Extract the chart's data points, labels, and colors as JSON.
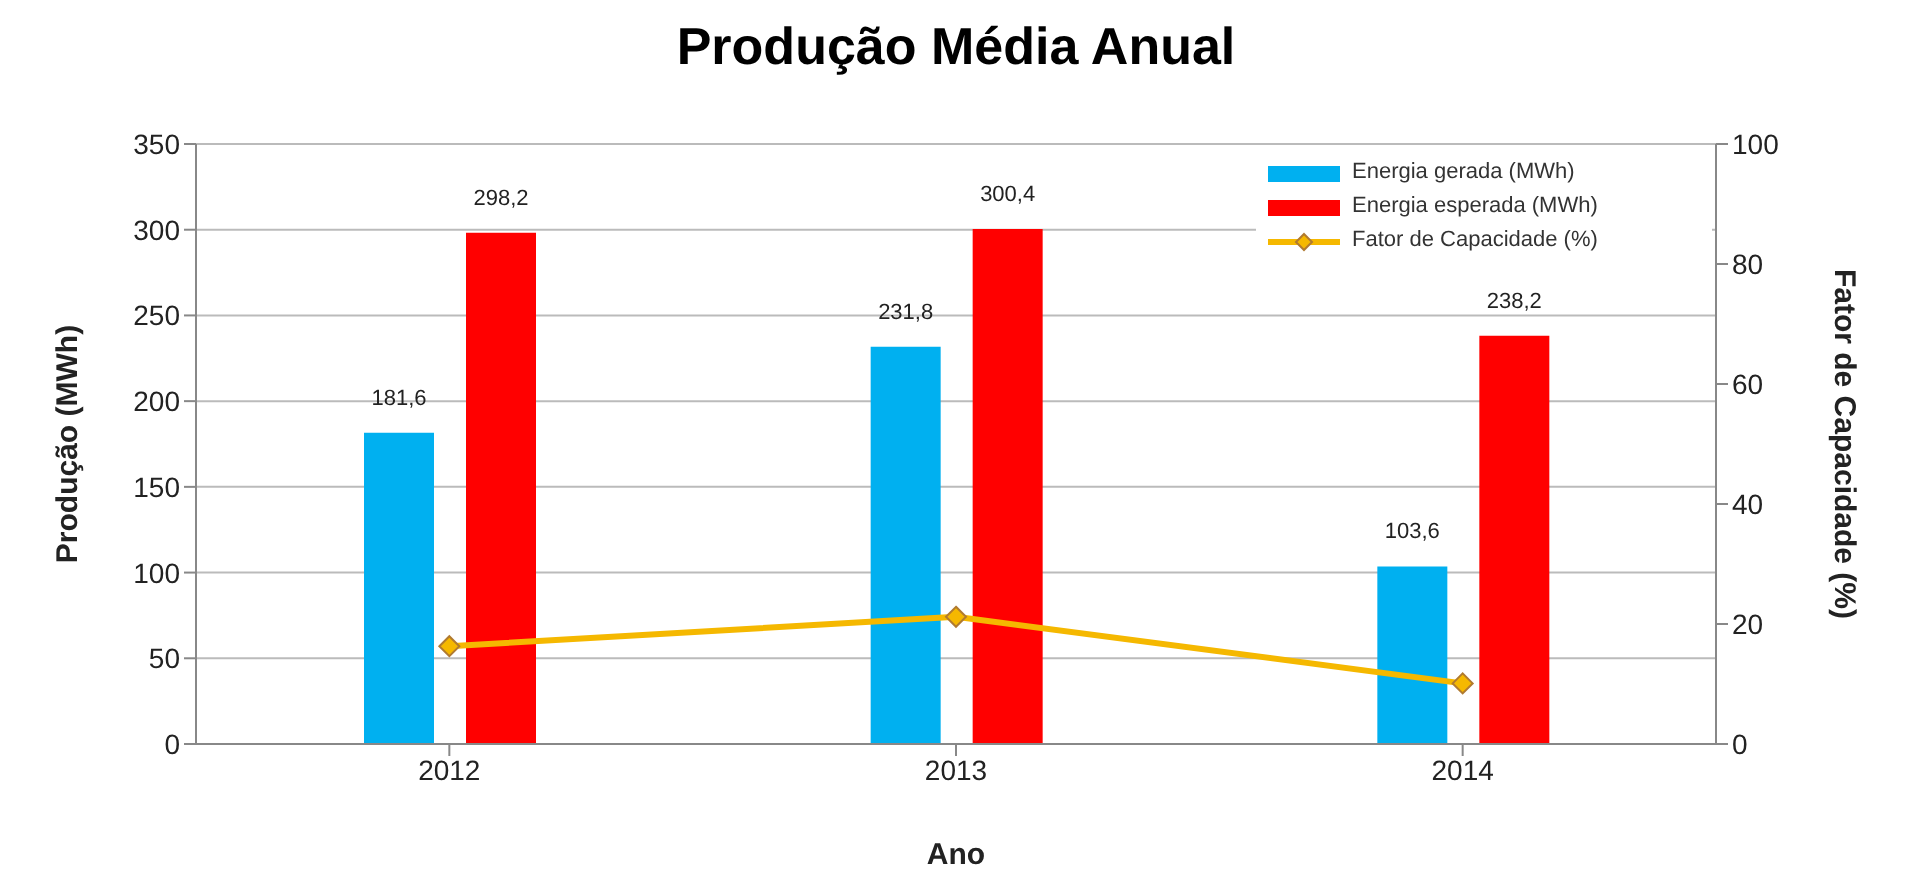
{
  "chart_data": {
    "type": "bar",
    "title": "Produção Média Anual",
    "xlabel": "Ano",
    "ylabel": "Produção (MWh)",
    "y2label": "Fator de Capacidade (%)",
    "categories": [
      "2012",
      "2013",
      "2014"
    ],
    "series": [
      {
        "name": "Energia gerada (MWh)",
        "color": "#00b0f0",
        "values": [
          181.6,
          231.8,
          103.6
        ],
        "value_labels": [
          "181,6",
          "231,8",
          "103,6"
        ]
      },
      {
        "name": "Energia esperada (MWh)",
        "color": "#ff0000",
        "values": [
          298.2,
          300.4,
          238.2
        ],
        "value_labels": [
          "298,2",
          "300,4",
          "238,2"
        ]
      },
      {
        "name": "Fator de Capacidade (%)",
        "type": "line",
        "axis": "y2",
        "color": "#f5b800",
        "values": [
          16.3,
          21.2,
          10.1
        ],
        "marker": "diamond"
      }
    ],
    "ylim": [
      0,
      350
    ],
    "yticks": [
      0,
      50,
      100,
      150,
      200,
      250,
      300,
      350
    ],
    "y2lim": [
      0,
      100
    ],
    "y2ticks": [
      0,
      20,
      40,
      60,
      80,
      100
    ],
    "grid": "y",
    "legend": "top right"
  }
}
